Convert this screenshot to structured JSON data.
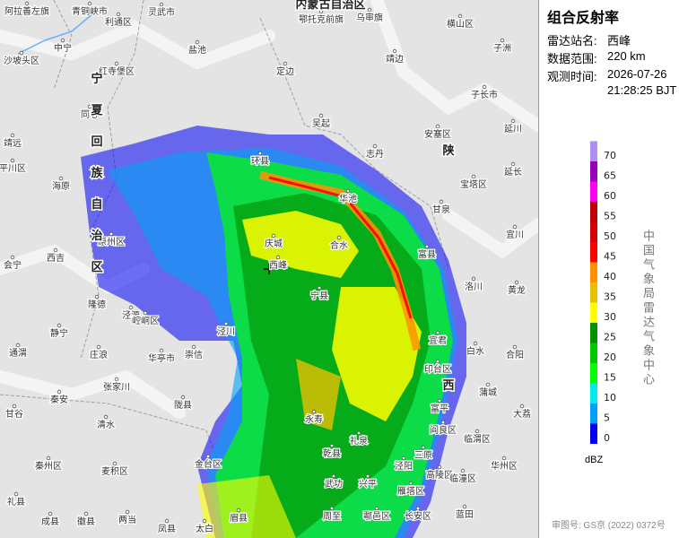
{
  "title": "组合反射率",
  "info": [
    {
      "label": "雷达站名:",
      "value": "西峰"
    },
    {
      "label": "数据范围:",
      "value": "220 km"
    }
  ],
  "time": {
    "label": "观测时间:",
    "date": "2026-07-26",
    "clock": "21:28:25 BJT"
  },
  "legend": {
    "unit": "dBZ",
    "levels": [
      {
        "value": 0,
        "color": "#0000f6"
      },
      {
        "value": 5,
        "color": "#01a0f6"
      },
      {
        "value": 10,
        "color": "#00ecec"
      },
      {
        "value": 15,
        "color": "#01ff00"
      },
      {
        "value": 20,
        "color": "#00c800"
      },
      {
        "value": 25,
        "color": "#019000"
      },
      {
        "value": 30,
        "color": "#ffff00"
      },
      {
        "value": 35,
        "color": "#e7c000"
      },
      {
        "value": 40,
        "color": "#ff9000"
      },
      {
        "value": 45,
        "color": "#ff0000"
      },
      {
        "value": 50,
        "color": "#d60000"
      },
      {
        "value": 55,
        "color": "#c00000"
      },
      {
        "value": 60,
        "color": "#ff00f0"
      },
      {
        "value": 65,
        "color": "#9600b4"
      },
      {
        "value": 70,
        "color": "#ad90f0"
      }
    ]
  },
  "credit": "中国气象局雷达气象中心",
  "approval": "审图号: GS京 (2022) 0372号",
  "regions": [
    "内蒙古自治区",
    "宁夏回族自治区",
    "陕西"
  ],
  "places": [
    "阿拉善左旗",
    "青铜峡市",
    "利通区",
    "灵武市",
    "鄂托克前旗",
    "乌审旗",
    "横山区",
    "中宁",
    "沙坡头区",
    "盐池",
    "靖边",
    "子洲",
    "红寺堡区",
    "定边",
    "子长市",
    "同心",
    "吴起",
    "安塞区",
    "延川",
    "靖远",
    "志丹",
    "平川区",
    "延长",
    "宝塔区",
    "海原",
    "华池",
    "甘泉",
    "环县",
    "宜川",
    "原州区",
    "庆城",
    "西峰",
    "富县",
    "西吉",
    "合水",
    "会宁",
    "洛川",
    "黄龙",
    "隆德",
    "泾源",
    "宁县",
    "崆峒区",
    "静宁",
    "泾川",
    "宜君",
    "通渭",
    "白水",
    "合阳",
    "庄浪",
    "华亭市",
    "崇信",
    "印台区",
    "张家川",
    "蒲城",
    "秦安",
    "陇县",
    "富平",
    "甘谷",
    "大荔",
    "永寿",
    "清水",
    "阎良区",
    "临渭区",
    "礼泉",
    "乾县",
    "华州区",
    "秦州区",
    "麦积区",
    "金台区",
    "三原",
    "泾阳",
    "高陵区",
    "武功",
    "兴平",
    "临潼区",
    "雁塔区",
    "礼县",
    "眉县",
    "周至",
    "鄠邑区",
    "长安区",
    "蓝田",
    "成县",
    "徽县",
    "两当",
    "凤县",
    "太白"
  ]
}
